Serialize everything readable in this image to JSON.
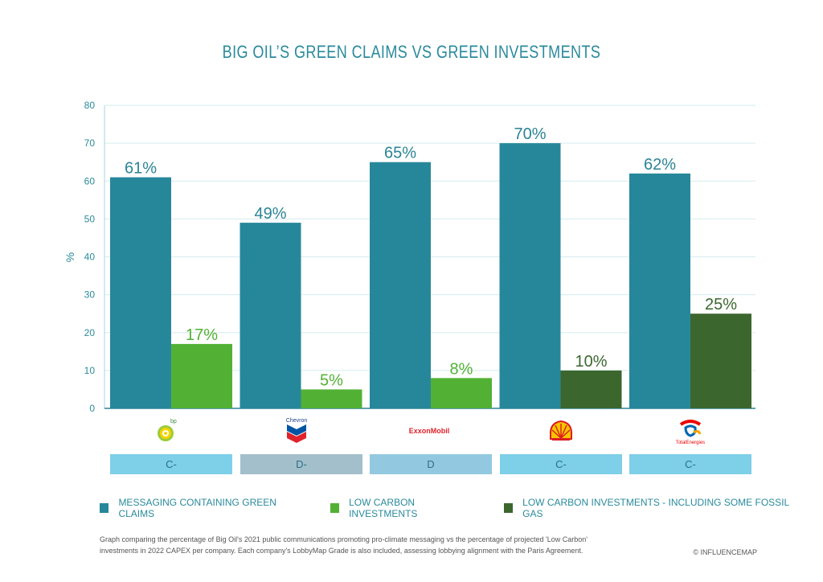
{
  "chart_data": {
    "type": "bar",
    "title": "BIG OIL’S GREEN CLAIMS VS GREEN INVESTMENTS",
    "ylabel": "%",
    "ylim": [
      0,
      80
    ],
    "yticks": [
      0,
      10,
      20,
      30,
      40,
      50,
      60,
      70,
      80
    ],
    "grid": true,
    "companies": [
      {
        "name": "BP",
        "logo_text": "bp",
        "grade": "C-",
        "grade_color": "#7ecfe8",
        "green_claims": 61,
        "low_carbon": 17,
        "low_carbon_type": "low_carbon",
        "green_claims_label": "61%",
        "low_carbon_label": "17%"
      },
      {
        "name": "Chevron",
        "logo_text": "Chevron",
        "grade": "D-",
        "grade_color": "#a3bfcb",
        "green_claims": 49,
        "low_carbon": 5,
        "low_carbon_type": "low_carbon",
        "green_claims_label": "49%",
        "low_carbon_label": "5%"
      },
      {
        "name": "ExxonMobil",
        "logo_text": "ExxonMobil",
        "grade": "D",
        "grade_color": "#93c9e0",
        "green_claims": 65,
        "low_carbon": 8,
        "low_carbon_type": "low_carbon",
        "green_claims_label": "65%",
        "low_carbon_label": "8%"
      },
      {
        "name": "Shell",
        "logo_text": "",
        "grade": "C-",
        "grade_color": "#7ecfe8",
        "green_claims": 70,
        "low_carbon": 10,
        "low_carbon_type": "low_carbon_fossil_gas",
        "green_claims_label": "70%",
        "low_carbon_label": "10%"
      },
      {
        "name": "TotalEnergies",
        "logo_text": "TotalEnergies",
        "grade": "C-",
        "grade_color": "#7ecfe8",
        "green_claims": 62,
        "low_carbon": 25,
        "low_carbon_type": "low_carbon_fossil_gas",
        "green_claims_label": "62%",
        "low_carbon_label": "25%"
      }
    ],
    "legend": [
      {
        "key": "green_claims",
        "label": "MESSAGING CONTAINING GREEN CLAIMS",
        "color": "#27879a"
      },
      {
        "key": "low_carbon",
        "label": "LOW CARBON INVESTMENTS",
        "color": "#52b135"
      },
      {
        "key": "low_carbon_fossil_gas",
        "label": "LOW CARBON INVESTMENTS - INCLUDING SOME FOSSIL GAS",
        "color": "#3b672f"
      }
    ]
  },
  "caption": "Graph comparing the percentage of Big Oil's 2021 public communications promoting pro-climate messaging vs the percentage of projected 'Low Carbon' investments in 2022 CAPEX per company. Each company's LobbyMap Grade is also included, assessing lobbying alignment with the Paris Agreement.",
  "credit": "© INFLUENCEMAP",
  "colors": {
    "axis_text": "#2a8a9c",
    "grid": "#d5ecef",
    "label_green_claims": "#2a8496",
    "label_low_carbon": "#52b135",
    "label_fossil_gas": "#3b672f",
    "shell_yellow": "#f7c400",
    "shell_red": "#dd1d21"
  }
}
